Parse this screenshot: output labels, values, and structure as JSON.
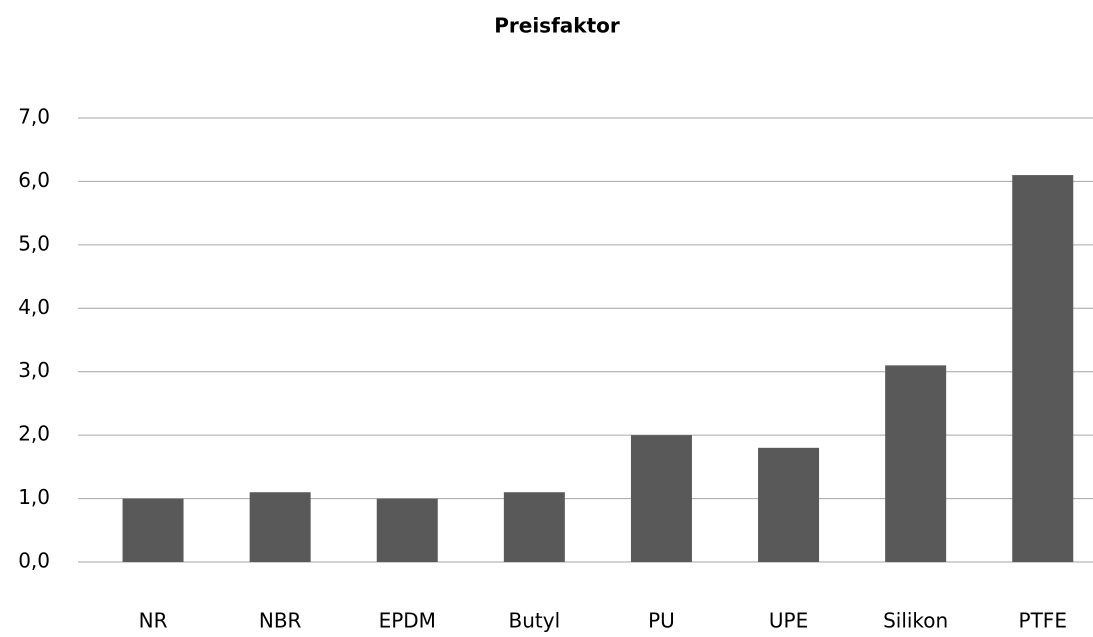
{
  "chart_data": {
    "type": "bar",
    "title": "Preisfaktor",
    "categories": [
      "NR",
      "NBR",
      "EPDM",
      "Butyl",
      "PU",
      "UPE",
      "Silikon",
      "PTFE"
    ],
    "values": [
      1.0,
      1.1,
      1.0,
      1.1,
      2.0,
      1.8,
      3.1,
      6.1
    ],
    "color": "#595959",
    "ylim": [
      0,
      7
    ],
    "yticks": [
      {
        "value": 0,
        "label": "0,0"
      },
      {
        "value": 1,
        "label": "1,0"
      },
      {
        "value": 2,
        "label": "2,0"
      },
      {
        "value": 3,
        "label": "3,0"
      },
      {
        "value": 4,
        "label": "4,0"
      },
      {
        "value": 5,
        "label": "5,0"
      },
      {
        "value": 6,
        "label": "6,0"
      },
      {
        "value": 7,
        "label": "7,0"
      }
    ],
    "grid": true
  }
}
